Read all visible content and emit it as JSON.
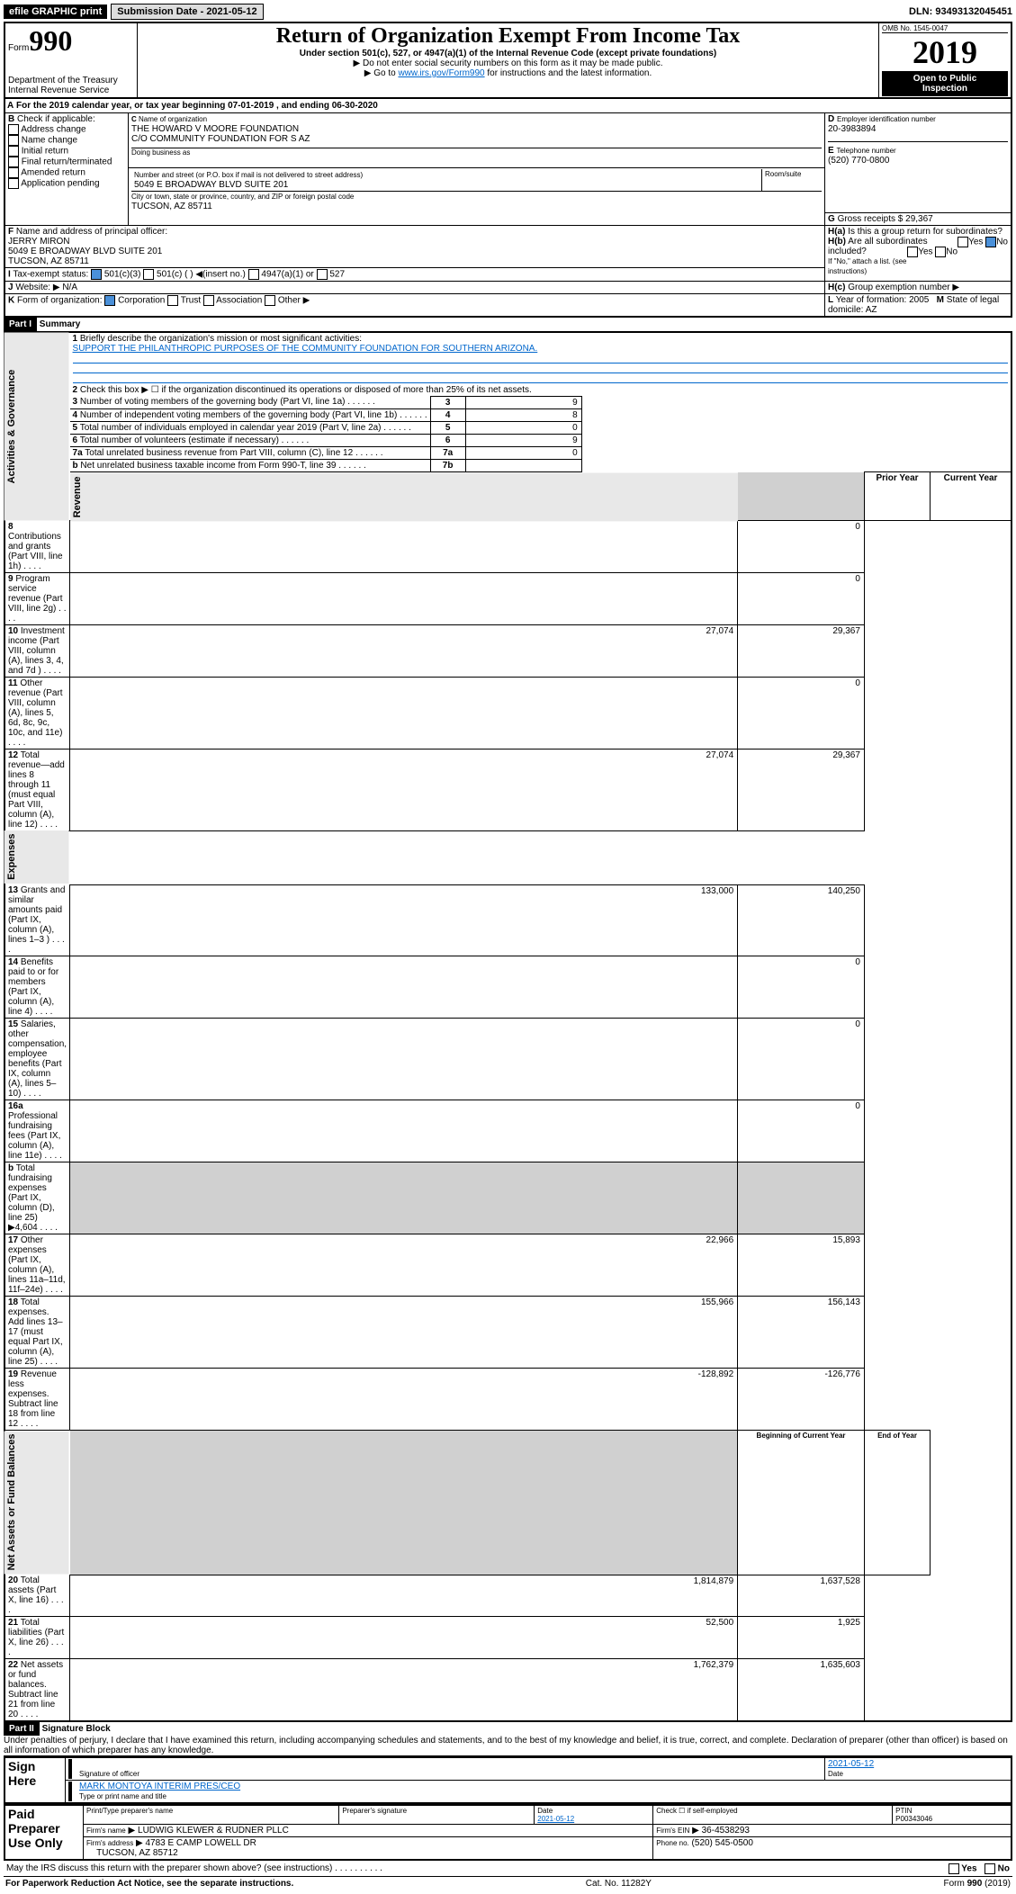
{
  "topbar": {
    "efile": "efile GRAPHIC print",
    "submission": "Submission Date - 2021-05-12",
    "dln": "DLN: 93493132045451"
  },
  "header": {
    "form_no": "990",
    "form_word": "Form",
    "title": "Return of Organization Exempt From Income Tax",
    "subtitle": "Under section 501(c), 527, or 4947(a)(1) of the Internal Revenue Code (except private foundations)",
    "note1": "Do not enter social security numbers on this form as it may be made public.",
    "note2": "Go to www.irs.gov/Form990 for instructions and the latest information.",
    "note2_link": "www.irs.gov/Form990",
    "dept": "Department of the Treasury",
    "irs": "Internal Revenue Service",
    "omb": "OMB No. 1545-0047",
    "year": "2019",
    "open": "Open to Public",
    "inspection": "Inspection"
  },
  "sectionA": {
    "cal_year": "For the 2019 calendar year, or tax year beginning 07-01-2019    , and ending 06-30-2020",
    "check_label": "Check if applicable:",
    "checks": [
      "Address change",
      "Name change",
      "Initial return",
      "Final return/terminated",
      "Amended return",
      "Application pending"
    ],
    "c_label": "Name of organization",
    "org_name": "THE HOWARD V MOORE FOUNDATION",
    "org_co": "C/O COMMUNITY FOUNDATION FOR S AZ",
    "dba_label": "Doing business as",
    "addr_label": "Number and street (or P.O. box if mail is not delivered to street address)",
    "room_label": "Room/suite",
    "addr": "5049 E BROADWAY BLVD SUITE 201",
    "city_label": "City or town, state or province, country, and ZIP or foreign postal code",
    "city": "TUCSON, AZ  85711",
    "d_label": "Employer identification number",
    "d_val": "20-3983894",
    "e_label": "Telephone number",
    "e_val": "(520) 770-0800",
    "g_label": "Gross receipts $",
    "g_val": "29,367",
    "f_label": "Name and address of principal officer:",
    "officer_name": "JERRY MIRON",
    "officer_addr": "5049 E BROADWAY BLVD SUITE 201",
    "officer_city": "TUCSON, AZ  85711",
    "ha": "Is this a group return for subordinates?",
    "hb": "Are all subordinates included?",
    "h_note": "If \"No,\" attach a list. (see instructions)",
    "hc": "Group exemption number",
    "i_label": "Tax-exempt status:",
    "i_501c3": "501(c)(3)",
    "i_501c": "501(c) (  )",
    "i_insert": "(insert no.)",
    "i_4947": "4947(a)(1) or",
    "i_527": "527",
    "j_label": "Website:",
    "j_val": "N/A",
    "k_label": "Form of organization:",
    "k_corp": "Corporation",
    "k_trust": "Trust",
    "k_assoc": "Association",
    "k_other": "Other",
    "l_label": "Year of formation:",
    "l_val": "2005",
    "m_label": "State of legal domicile:",
    "m_val": "AZ",
    "yes": "Yes",
    "no": "No"
  },
  "part1": {
    "hdr": "Part I",
    "title": "Summary",
    "q1": "Briefly describe the organization's mission or most significant activities:",
    "q1_ans": "SUPPORT THE PHILANTHROPIC PURPOSES OF THE COMMUNITY FOUNDATION FOR SOUTHERN ARIZONA.",
    "q2": "Check this box ▶ ☐  if the organization discontinued its operations or disposed of more than 25% of its net assets.",
    "rows_gov": [
      {
        "n": "3",
        "t": "Number of voting members of the governing body (Part VI, line 1a)",
        "box": "3",
        "v": "9"
      },
      {
        "n": "4",
        "t": "Number of independent voting members of the governing body (Part VI, line 1b)",
        "box": "4",
        "v": "8"
      },
      {
        "n": "5",
        "t": "Total number of individuals employed in calendar year 2019 (Part V, line 2a)",
        "box": "5",
        "v": "0"
      },
      {
        "n": "6",
        "t": "Total number of volunteers (estimate if necessary)",
        "box": "6",
        "v": "9"
      },
      {
        "n": "7a",
        "t": "Total unrelated business revenue from Part VIII, column (C), line 12",
        "box": "7a",
        "v": "0"
      },
      {
        "n": "b",
        "t": "Net unrelated business taxable income from Form 990-T, line 39",
        "box": "7b",
        "v": ""
      }
    ],
    "col_prior": "Prior Year",
    "col_current": "Current Year",
    "rev": [
      {
        "n": "8",
        "t": "Contributions and grants (Part VIII, line 1h)",
        "p": "",
        "c": "0"
      },
      {
        "n": "9",
        "t": "Program service revenue (Part VIII, line 2g)",
        "p": "",
        "c": "0"
      },
      {
        "n": "10",
        "t": "Investment income (Part VIII, column (A), lines 3, 4, and 7d )",
        "p": "27,074",
        "c": "29,367"
      },
      {
        "n": "11",
        "t": "Other revenue (Part VIII, column (A), lines 5, 6d, 8c, 9c, 10c, and 11e)",
        "p": "",
        "c": "0"
      },
      {
        "n": "12",
        "t": "Total revenue—add lines 8 through 11 (must equal Part VIII, column (A), line 12)",
        "p": "27,074",
        "c": "29,367"
      }
    ],
    "exp": [
      {
        "n": "13",
        "t": "Grants and similar amounts paid (Part IX, column (A), lines 1–3 )",
        "p": "133,000",
        "c": "140,250"
      },
      {
        "n": "14",
        "t": "Benefits paid to or for members (Part IX, column (A), line 4)",
        "p": "",
        "c": "0"
      },
      {
        "n": "15",
        "t": "Salaries, other compensation, employee benefits (Part IX, column (A), lines 5–10)",
        "p": "",
        "c": "0"
      },
      {
        "n": "16a",
        "t": "Professional fundraising fees (Part IX, column (A), line 11e)",
        "p": "",
        "c": "0"
      },
      {
        "n": "b",
        "t": "Total fundraising expenses (Part IX, column (D), line 25) ▶4,604",
        "p": "GRAY",
        "c": "GRAY"
      },
      {
        "n": "17",
        "t": "Other expenses (Part IX, column (A), lines 11a–11d, 11f–24e)",
        "p": "22,966",
        "c": "15,893"
      },
      {
        "n": "18",
        "t": "Total expenses. Add lines 13–17 (must equal Part IX, column (A), line 25)",
        "p": "155,966",
        "c": "156,143"
      },
      {
        "n": "19",
        "t": "Revenue less expenses. Subtract line 18 from line 12",
        "p": "-128,892",
        "c": "-126,776"
      }
    ],
    "col_begin": "Beginning of Current Year",
    "col_end": "End of Year",
    "net": [
      {
        "n": "20",
        "t": "Total assets (Part X, line 16)",
        "p": "1,814,879",
        "c": "1,637,528"
      },
      {
        "n": "21",
        "t": "Total liabilities (Part X, line 26)",
        "p": "52,500",
        "c": "1,925"
      },
      {
        "n": "22",
        "t": "Net assets or fund balances. Subtract line 21 from line 20",
        "p": "1,762,379",
        "c": "1,635,603"
      }
    ],
    "vside_gov": "Activities & Governance",
    "vside_rev": "Revenue",
    "vside_exp": "Expenses",
    "vside_net": "Net Assets or Fund Balances"
  },
  "part2": {
    "hdr": "Part II",
    "title": "Signature Block",
    "perjury": "Under penalties of perjury, I declare that I have examined this return, including accompanying schedules and statements, and to the best of my knowledge and belief, it is true, correct, and complete. Declaration of preparer (other than officer) is based on all information of which preparer has any knowledge.",
    "sign": "Sign Here",
    "sig_officer": "Signature of officer",
    "date": "Date",
    "date_val": "2021-05-12",
    "name_title": "MARK MONTOYA INTERIM PRES/CEO",
    "type_name": "Type or print name and title",
    "paid": "Paid Preparer Use Only",
    "prep_name_label": "Print/Type preparer's name",
    "prep_sig_label": "Preparer's signature",
    "prep_date_label": "Date",
    "prep_date": "2021-05-12",
    "check_self": "Check ☐ if self-employed",
    "ptin_label": "PTIN",
    "ptin": "P00343046",
    "firm_name_label": "Firm's name",
    "firm_name": "LUDWIG KLEWER & RUDNER PLLC",
    "firm_ein_label": "Firm's EIN",
    "firm_ein": "36-4538293",
    "firm_addr_label": "Firm's address",
    "firm_addr": "4783 E CAMP LOWELL DR",
    "firm_city": "TUCSON, AZ  85712",
    "phone_label": "Phone no.",
    "phone": "(520) 545-0500",
    "discuss": "May the IRS discuss this return with the preparer shown above? (see instructions)",
    "paperwork": "For Paperwork Reduction Act Notice, see the separate instructions.",
    "cat": "Cat. No. 11282Y",
    "form_foot": "Form 990 (2019)"
  }
}
